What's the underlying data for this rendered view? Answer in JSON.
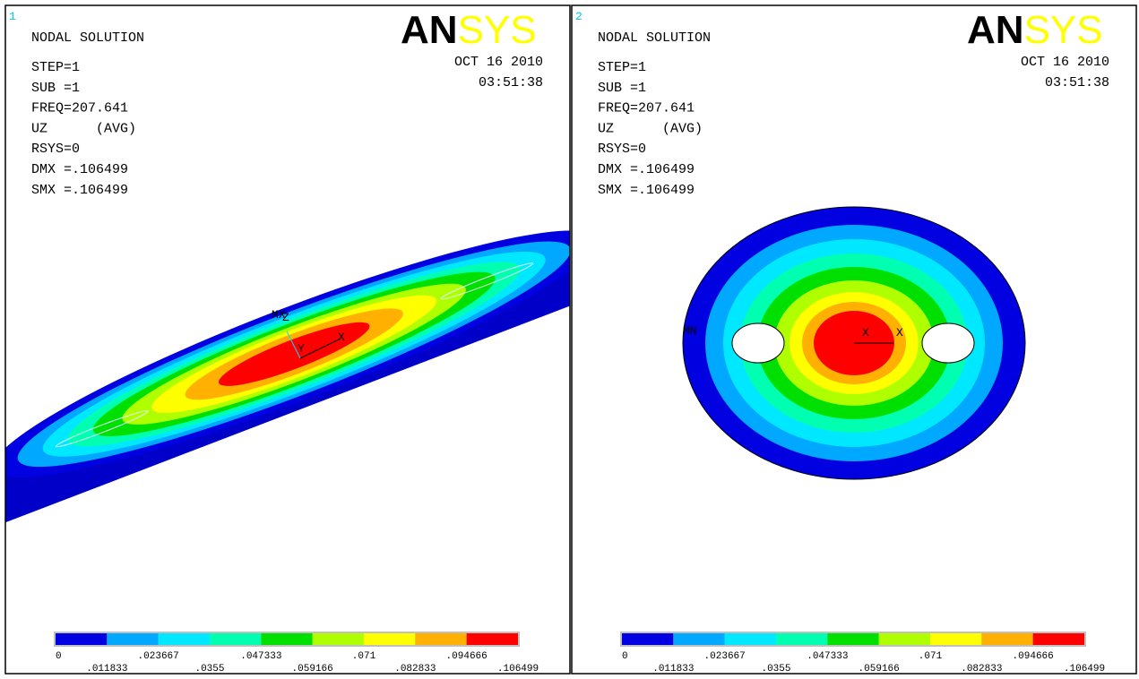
{
  "panels": [
    {
      "window": "1",
      "logo_left": "AN",
      "logo_right": "SYS",
      "title": "NODAL SOLUTION",
      "info": [
        "STEP=1",
        "SUB =1",
        "FREQ=207.641",
        "UZ      (AVG)",
        "RSYS=0",
        "DMX =.106499",
        "SMX =.106499"
      ],
      "date": "OCT 16 2010",
      "time": "03:51:38",
      "markers": [
        "MX",
        "Z",
        "Y",
        "X"
      ],
      "legend": {
        "upper": [
          "0",
          ".023667",
          ".047333",
          ".071",
          ".094666"
        ],
        "lower": [
          ".011833",
          ".0355",
          ".059166",
          ".082833",
          ".106499"
        ]
      }
    },
    {
      "window": "2",
      "logo_left": "AN",
      "logo_right": "SYS",
      "title": "NODAL SOLUTION",
      "info": [
        "STEP=1",
        "SUB =1",
        "FREQ=207.641",
        "UZ      (AVG)",
        "RSYS=0",
        "DMX =.106499",
        "SMX =.106499"
      ],
      "date": "OCT 16 2010",
      "time": "03:51:38",
      "markers": [
        "MN",
        "X",
        "X"
      ],
      "legend": {
        "upper": [
          "0",
          ".023667",
          ".047333",
          ".071",
          ".094666"
        ],
        "lower": [
          ".011833",
          ".0355",
          ".059166",
          ".082833",
          ".106499"
        ]
      }
    }
  ]
}
